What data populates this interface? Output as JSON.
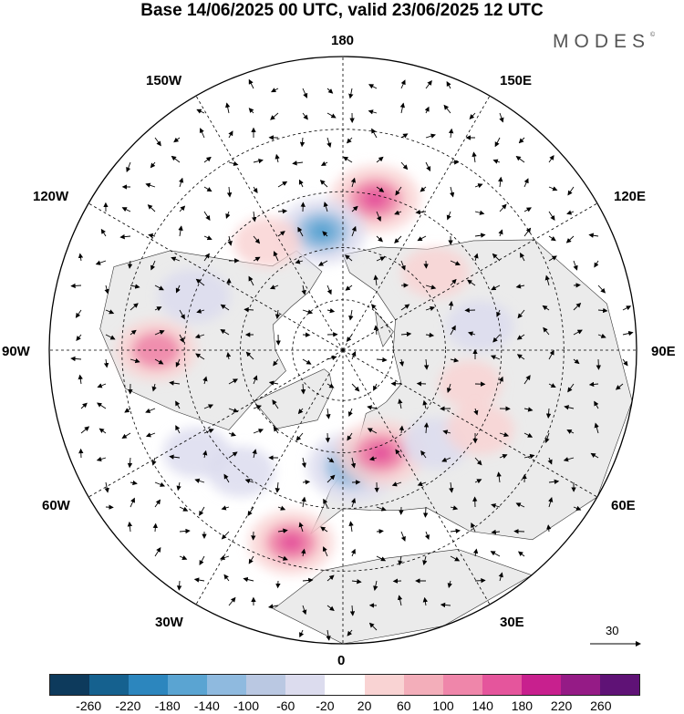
{
  "title": "Base 14/06/2025 00 UTC, valid 23/06/2025 12 UTC",
  "brand": "MODES",
  "brand_mark": "©",
  "longitude_labels": {
    "top": "180",
    "bottom": "0",
    "left": "90W",
    "right": "90E",
    "upper_left_1": "150W",
    "upper_left_2": "120W",
    "lower_left_1": "60W",
    "lower_left_2": "30W",
    "upper_right_1": "150E",
    "upper_right_2": "120E",
    "lower_right_1": "60E",
    "lower_right_2": "30E"
  },
  "vector_scale": {
    "label": "30"
  },
  "colorbar": {
    "colors": [
      "#0d3a5c",
      "#15618f",
      "#2c86be",
      "#5aa4d2",
      "#8fbadf",
      "#bac8e2",
      "#dcdcee",
      "#ffffff",
      "#f9d3d3",
      "#f3aeba",
      "#ef86aa",
      "#e5559c",
      "#c8208e",
      "#951b86",
      "#5f1276"
    ],
    "tick_labels": [
      "-260",
      "-220",
      "-180",
      "-140",
      "-100",
      "-60",
      "-20",
      "20",
      "60",
      "100",
      "140",
      "180",
      "220",
      "260"
    ]
  },
  "map": {
    "projection": "north-polar-stereographic",
    "land_color": "#ebebeb",
    "ocean_color": "#ffffff",
    "anomalies": [
      {
        "lon": 168,
        "lat": 46,
        "value": 160
      },
      {
        "lon": 190,
        "lat": 55,
        "value": -150
      },
      {
        "lon": 215,
        "lat": 52,
        "value": 60
      },
      {
        "lon": 130,
        "lat": 55,
        "value": 60
      },
      {
        "lon": 100,
        "lat": 50,
        "value": -60
      },
      {
        "lon": 75,
        "lat": 52,
        "value": 40
      },
      {
        "lon": 250,
        "lat": 45,
        "value": -80
      },
      {
        "lon": 270,
        "lat": 38,
        "value": 120
      },
      {
        "lon": 305,
        "lat": 40,
        "value": -60
      },
      {
        "lon": 320,
        "lat": 45,
        "value": -60
      },
      {
        "lon": 345,
        "lat": 35,
        "value": 140
      },
      {
        "lon": 5,
        "lat": 56,
        "value": -170
      },
      {
        "lon": 20,
        "lat": 58,
        "value": 150
      },
      {
        "lon": 45,
        "lat": 52,
        "value": -60
      },
      {
        "lon": 60,
        "lat": 45,
        "value": 60
      }
    ]
  }
}
